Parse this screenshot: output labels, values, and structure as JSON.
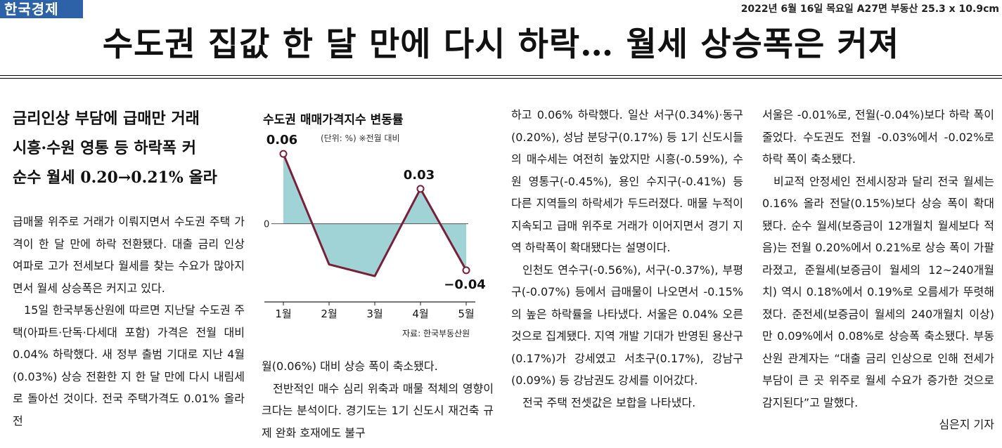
{
  "masthead": {
    "logo": "한국경제",
    "pub_info": "2022년 6월 16일 목요일 A27면 부동산 25.3 x 10.9cm"
  },
  "headline": "수도권 집값 한 달 만에 다시 하락… 월세 상승폭은 커져",
  "subheads": [
    "금리인상 부담에 급매만 거래",
    "시흥·수원 영통 등 하락폭 커",
    "순수 월세 0.20→0.21% 올라"
  ],
  "body": {
    "col1": [
      "급매물 위주로 거래가 이뤄지면서 수도권 주택 가격이 한 달 만에 하락 전환됐다. 대출 금리 인상 여파로 고가 전세보다 월세를 찾는 수요가 많아지면서 월세 상승폭은 커지고 있다.",
      "15일 한국부동산원에 따르면 지난달 수도권 주택(아파트·단독·다세대 포함) 가격은 전월 대비 0.04% 하락했다. 새 정부 출범 기대로 지난 4월(0.03%) 상승 전환한 지 한 달 만에 다시 내림세로 돌아선 것이다. 전국 주택가격도 0.01% 올라 전"
    ],
    "col2": [
      "월(0.06%) 대비 상승 폭이 축소됐다.",
      "전반적인 매수 심리 위축과 매물 적체의 영향이 크다는 분석이다. 경기도는 1기 신도시 재건축 규제 완화 호재에도 불구"
    ],
    "col3": [
      "하고 0.06% 하락했다. 일산 서구(0.34%)·동구(0.20%), 성남 분당구(0.17%) 등 1기 신도시들의 매수세는 여전히 높았지만 시흥(-0.59%), 수원 영통구(-0.45%), 용인 수지구(-0.41%) 등 다른 지역들의 하락세가 두드러졌다. 매물 누적이 지속되고 급매 위주로 거래가 이어지면서 경기 지역 하락폭이 확대됐다는 설명이다.",
      "인천도 연수구(-0.56%), 서구(-0.37%), 부평구(-0.07%) 등에서 급매물이 나오면서 -0.15%의 높은 하락률을 나타냈다. 서울은 0.04% 오른 것으로 집계됐다. 지역 개발 기대가 반영된 용산구(0.17%)가 강세였고 서초구(0.17%), 강남구(0.09%) 등 강남권도 강세를 이어갔다.",
      "전국 주택 전셋값은 보합을 나타냈다."
    ],
    "col4": [
      "서울은 -0.01%로, 전월(-0.04%)보다 하락 폭이 줄었다. 수도권도 전월 -0.03%에서 -0.02%로 하락 폭이 축소됐다.",
      "비교적 안정세인 전세시장과 달리 전국 월세는 0.16% 올라 전달(0.15%)보다 상승 폭이 확대됐다. 순수 월세(보증금이 12개월치 월세보다 적음)는 전월 0.20%에서 0.21%로 상승 폭이 가팔라졌고, 준월세(보증금이 월세의 12~240개월치) 역시 0.18%에서 0.19%로 오름세가 뚜렷해졌다. 준전세(보증금이 월세의 240개월치 이상)만 0.09%에서 0.08%로 상승폭 축소됐다. 부동산원 관계자는 “대출 금리 인상으로 인해 전세가 부담이 큰 곳 위주로 월세 수요가 증가한 것으로 감지된다”고 말했다."
    ],
    "byline": "심은지 기자"
  },
  "chart_data": {
    "type": "area",
    "title": "수도권 매매가격지수 변동률",
    "unit_note": "(단위: %) ※전월 대비",
    "source": "자료: 한국부동산원",
    "categories": [
      "1월",
      "2월",
      "3월",
      "4월",
      "5월"
    ],
    "values": [
      0.06,
      -0.035,
      -0.045,
      0.03,
      -0.04
    ],
    "data_labels": [
      "0.06",
      "",
      "",
      "0.03",
      "−0.04"
    ],
    "zero_label": "0",
    "ylim": [
      -0.06,
      0.08
    ],
    "colors": {
      "fill": "#9fd3d5",
      "line": "#7a1f38",
      "axis": "#555555"
    }
  }
}
